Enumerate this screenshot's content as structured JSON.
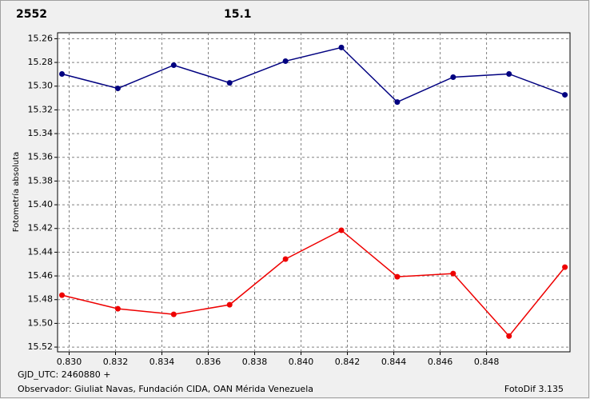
{
  "chart_data": {
    "type": "line",
    "y_label": "Fotometría absoluta",
    "x_caption": "GJD_UTC: 2460880 +",
    "observer": "Observador: Giuliat Navas, Fundación CIDA, OAN Mérida Venezuela",
    "software": "FotoDif 3.135",
    "x": [
      0.82969,
      0.8321,
      0.83451,
      0.83692,
      0.83933,
      0.84174,
      0.84415,
      0.84656,
      0.84897,
      0.85138
    ],
    "series": [
      {
        "name": "2552",
        "color": "#ee0000",
        "values": [
          15.4762,
          15.4877,
          15.4924,
          15.4843,
          15.4458,
          15.4215,
          15.4607,
          15.458,
          15.5107,
          15.4526
        ]
      },
      {
        "name": "15.1",
        "color": "#000080",
        "values": [
          15.2897,
          15.3019,
          15.2823,
          15.2972,
          15.2789,
          15.2674,
          15.3134,
          15.2924,
          15.2897,
          15.3073
        ]
      }
    ],
    "xlim": [
      0.8295,
      0.8516
    ],
    "ylim": [
      15.255,
      15.524
    ],
    "y_inverted": true,
    "xticks": [
      {
        "value": 0.83,
        "label": "0.830"
      },
      0.832,
      0.834,
      0.836,
      0.838,
      {
        "value": 0.84,
        "label": "0.840"
      },
      0.842,
      0.844,
      0.846,
      0.848
    ],
    "yticks": [
      15.26,
      15.28,
      {
        "value": 15.3,
        "label": "15.30"
      },
      15.32,
      15.34,
      15.36,
      15.38,
      {
        "value": 15.4,
        "label": "15.40"
      },
      15.42,
      15.44,
      15.46,
      15.48,
      {
        "value": 15.5,
        "label": "15.50"
      },
      15.52
    ],
    "grid": true
  }
}
